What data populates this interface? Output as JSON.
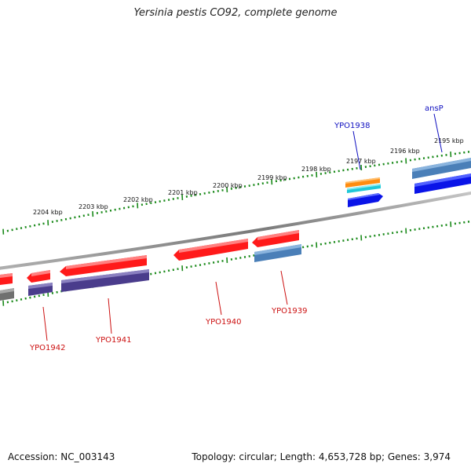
{
  "title": "Yersinia pestis CO92, complete genome",
  "footer": {
    "accession": "Accession: NC_003143",
    "summary": "Topology: circular; Length: 4,653,728 bp; Genes: 3,974"
  },
  "ruler_labels": [
    "2204 kbp",
    "2203 kbp",
    "2202 kbp",
    "2201 kbp",
    "2200 kbp",
    "2199 kbp",
    "2198 kbp",
    "2197 kbp",
    "2196 kbp",
    "2195 kbp"
  ],
  "gene_labels": {
    "forward": [
      "YPO1938",
      "ansP"
    ],
    "reverse": [
      "YPO1942",
      "YPO1941",
      "YPO1940",
      "YPO1939"
    ]
  },
  "colors": {
    "backbone": "#808080",
    "tick": "#1a8a1a",
    "forward_label": "#1010c0",
    "reverse_label": "#cc1010",
    "red_feature": "#ff1a1a",
    "purple_feature": "#4a3c8c",
    "steelblue_feature": "#4a7fb8",
    "blue_feature": "#0a14e8",
    "orange_feature": "#ff8c10",
    "cyan_feature": "#20c8d8",
    "gray_feature": "#707070"
  }
}
